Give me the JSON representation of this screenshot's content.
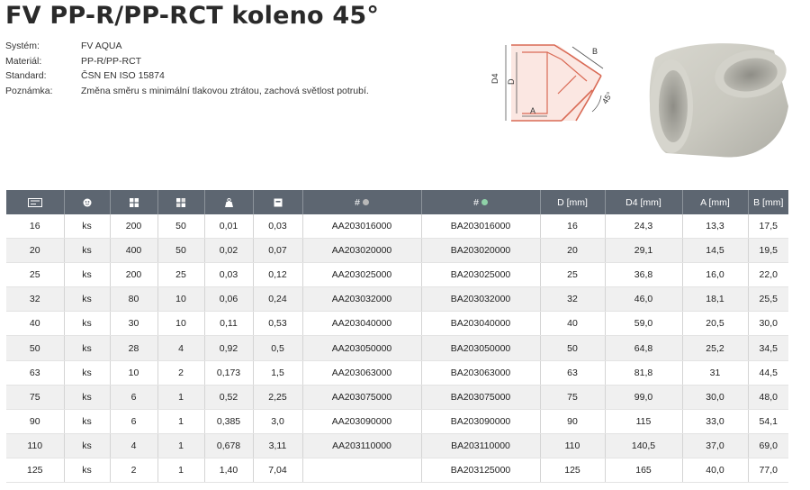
{
  "title": "FV PP-R/PP-RCT koleno 45°",
  "specs": [
    {
      "label": "Systém:",
      "value": "FV AQUA"
    },
    {
      "label": "Materiál:",
      "value": "PP-R/PP-RCT"
    },
    {
      "label": "Standard:",
      "value": "ČSN EN ISO 15874"
    },
    {
      "label": "Poznámka:",
      "value": "Změna směru s minimální tlakovou ztrátou, zachová světlost potrubí."
    }
  ],
  "drawing": {
    "label_d4": "D4",
    "label_d": "D",
    "label_a": "A",
    "label_b": "B",
    "label_angle": "45°"
  },
  "table": {
    "headers": {
      "dimension_icon": "pipe-dimension-icon",
      "unit_icon": "unit-icon",
      "package_icon": "package-icon",
      "carton_icon": "carton-icon",
      "weight_icon": "weight-icon",
      "box_icon": "box-icon",
      "code_grey": "#",
      "code_green": "#",
      "d": "D [mm]",
      "d4": "D4 [mm]",
      "a": "A [mm]",
      "b": "B [mm]"
    },
    "dot_colors": {
      "grey": "#b8b8b8",
      "green": "#8fd2a8"
    },
    "rows": [
      [
        "16",
        "ks",
        "200",
        "50",
        "0,01",
        "0,03",
        "AA203016000",
        "BA203016000",
        "16",
        "24,3",
        "13,3",
        "17,5"
      ],
      [
        "20",
        "ks",
        "400",
        "50",
        "0,02",
        "0,07",
        "AA203020000",
        "BA203020000",
        "20",
        "29,1",
        "14,5",
        "19,5"
      ],
      [
        "25",
        "ks",
        "200",
        "25",
        "0,03",
        "0,12",
        "AA203025000",
        "BA203025000",
        "25",
        "36,8",
        "16,0",
        "22,0"
      ],
      [
        "32",
        "ks",
        "80",
        "10",
        "0,06",
        "0,24",
        "AA203032000",
        "BA203032000",
        "32",
        "46,0",
        "18,1",
        "25,5"
      ],
      [
        "40",
        "ks",
        "30",
        "10",
        "0,11",
        "0,53",
        "AA203040000",
        "BA203040000",
        "40",
        "59,0",
        "20,5",
        "30,0"
      ],
      [
        "50",
        "ks",
        "28",
        "4",
        "0,92",
        "0,5",
        "AA203050000",
        "BA203050000",
        "50",
        "64,8",
        "25,2",
        "34,5"
      ],
      [
        "63",
        "ks",
        "10",
        "2",
        "0,173",
        "1,5",
        "AA203063000",
        "BA203063000",
        "63",
        "81,8",
        "31",
        "44,5"
      ],
      [
        "75",
        "ks",
        "6",
        "1",
        "0,52",
        "2,25",
        "AA203075000",
        "BA203075000",
        "75",
        "99,0",
        "30,0",
        "48,0"
      ],
      [
        "90",
        "ks",
        "6",
        "1",
        "0,385",
        "3,0",
        "AA203090000",
        "BA203090000",
        "90",
        "115",
        "33,0",
        "54,1"
      ],
      [
        "110",
        "ks",
        "4",
        "1",
        "0,678",
        "3,11",
        "AA203110000",
        "BA203110000",
        "110",
        "140,5",
        "37,0",
        "69,0"
      ],
      [
        "125",
        "ks",
        "2",
        "1",
        "1,40",
        "7,04",
        "",
        "BA203125000",
        "125",
        "165",
        "40,0",
        "77,0"
      ]
    ]
  }
}
